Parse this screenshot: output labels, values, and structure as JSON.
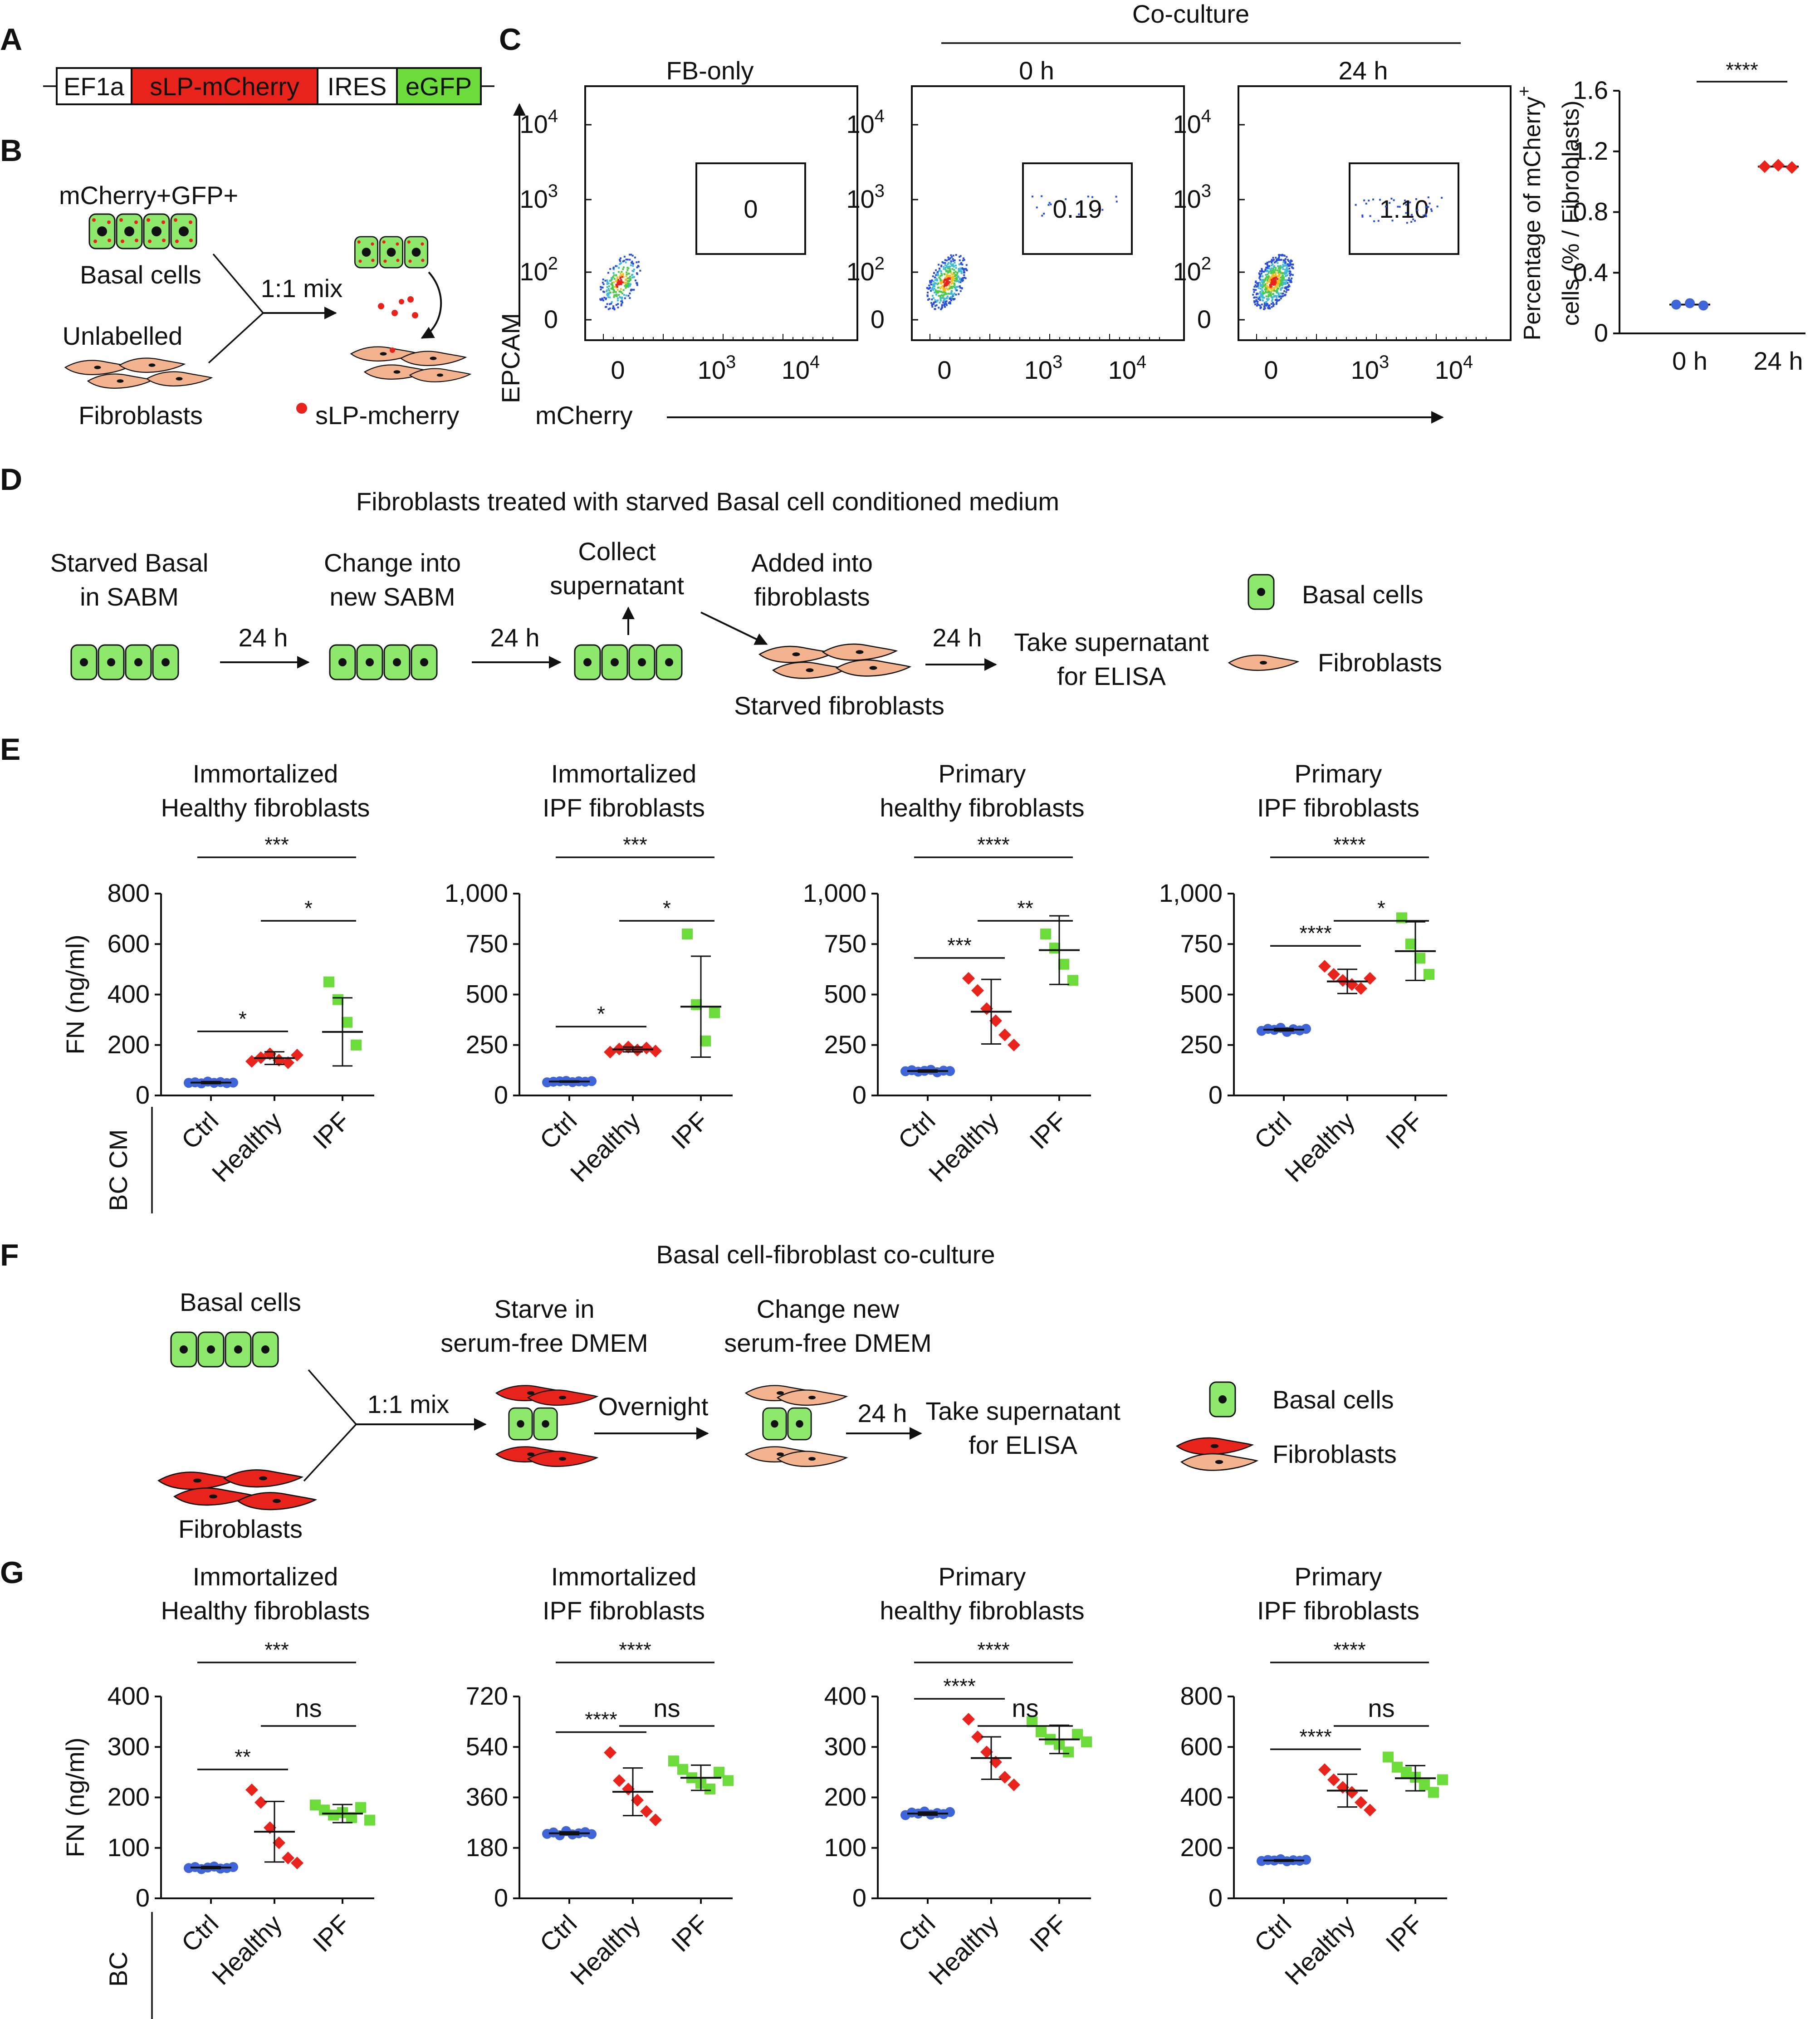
{
  "colors": {
    "red": "#e8231c",
    "green": "#6bdc3a",
    "blue": "#3e64d8",
    "basal": "#8ee86b",
    "fibro": "#f3b38f",
    "fibro_red": "#e8231c"
  },
  "panelA": {
    "label": "A",
    "segments": [
      "EF1a",
      "sLP-mCherry",
      "IRES",
      "eGFP"
    ]
  },
  "panelB": {
    "label": "B",
    "top_label": "mCherry+GFP+",
    "basal_label": "Basal cells",
    "mix_label": "1:1 mix",
    "unlabelled_label": "Unlabelled",
    "fibro_label": "Fibroblasts",
    "legend_label": "sLP-mcherry"
  },
  "panelC": {
    "label": "C",
    "coculture_label": "Co-culture",
    "y_axis_label": "EPCAM",
    "x_axis_label": "mCherry",
    "plots": [
      {
        "title": "FB-only",
        "gate_value": "0"
      },
      {
        "title": "0 h",
        "gate_value": "0.19"
      },
      {
        "title": "24 h",
        "gate_value": "1.10"
      }
    ],
    "y_ticks": [
      "10",
      "10",
      "10",
      "0"
    ],
    "y_exps": [
      "4",
      "3",
      "2",
      ""
    ],
    "x_ticks": [
      "0",
      "10",
      "10"
    ],
    "x_exps": [
      "",
      "3",
      "4"
    ]
  },
  "panelC_chart": {
    "y_label_line1": "Percentage of mCherry",
    "y_label_sup": "+",
    "y_label_line2": "cells (% / Fibroblasts)",
    "sig": "****"
  },
  "chart_data": [
    {
      "type": "scatter",
      "categories": [
        "0 h",
        "24 h"
      ],
      "ylim": [
        0,
        1.6
      ],
      "yticks": [
        "1.6",
        "1.2",
        "0.8",
        "0.4",
        "0"
      ],
      "series": [
        {
          "values": [
            0.19,
            1.1
          ]
        }
      ]
    },
    {
      "type": "scatter",
      "title": "Immortalized Healthy fibroblasts",
      "ylabel": "FN (ng/ml)",
      "categories": [
        "Ctrl",
        "Healthy",
        "IPF"
      ],
      "ylim": [
        0,
        800
      ],
      "yticks": [
        "800",
        "600",
        "400",
        "200",
        "0"
      ],
      "points": [
        [
          50,
          52,
          48,
          55,
          50,
          53,
          49,
          51
        ],
        [
          135,
          150,
          165,
          140,
          130,
          160
        ],
        [
          450,
          380,
          290,
          200
        ]
      ],
      "means": [
        51,
        148,
        252
      ],
      "sds": [
        4,
        25,
        135
      ],
      "comparisons": [
        {
          "pair": [
            0,
            2
          ],
          "label": "***"
        },
        {
          "pair": [
            1,
            2
          ],
          "label": "*"
        },
        {
          "pair": [
            0,
            1
          ],
          "label": "*"
        }
      ]
    },
    {
      "type": "scatter",
      "title": "Immortalized IPF fibroblasts",
      "ylabel": "",
      "categories": [
        "Ctrl",
        "Healthy",
        "IPF"
      ],
      "ylim": [
        0,
        1000
      ],
      "yticks": [
        "1,000",
        "750",
        "500",
        "250",
        "0"
      ],
      "points": [
        [
          65,
          68,
          70,
          72,
          66,
          70,
          68,
          71
        ],
        [
          215,
          230,
          240,
          225,
          235,
          220
        ],
        [
          800,
          450,
          270,
          410
        ]
      ],
      "means": [
        69,
        228,
        440
      ],
      "sds": [
        3,
        12,
        250
      ],
      "comparisons": [
        {
          "pair": [
            0,
            2
          ],
          "label": "***"
        },
        {
          "pair": [
            1,
            2
          ],
          "label": "*"
        },
        {
          "pair": [
            0,
            1
          ],
          "label": "*"
        }
      ]
    },
    {
      "type": "scatter",
      "title": "Primary healthy fibroblasts",
      "ylabel": "",
      "categories": [
        "Ctrl",
        "Healthy",
        "IPF"
      ],
      "ylim": [
        0,
        1000
      ],
      "yticks": [
        "1,000",
        "750",
        "500",
        "250",
        "0"
      ],
      "points": [
        [
          120,
          125,
          118,
          122,
          127,
          115,
          123,
          121
        ],
        [
          580,
          520,
          430,
          370,
          300,
          250
        ],
        [
          800,
          730,
          650,
          570
        ]
      ],
      "means": [
        121,
        415,
        720
      ],
      "sds": [
        5,
        160,
        170
      ],
      "comparisons": [
        {
          "pair": [
            0,
            2
          ],
          "label": "****"
        },
        {
          "pair": [
            1,
            2
          ],
          "label": "**"
        },
        {
          "pair": [
            0,
            1
          ],
          "label": "***"
        }
      ]
    },
    {
      "type": "scatter",
      "title": "Primary IPF fibroblasts",
      "ylabel": "",
      "categories": [
        "Ctrl",
        "Healthy",
        "IPF"
      ],
      "ylim": [
        0,
        1000
      ],
      "yticks": [
        "1,000",
        "750",
        "500",
        "250",
        "0"
      ],
      "points": [
        [
          320,
          330,
          325,
          335,
          315,
          328,
          322,
          330
        ],
        [
          640,
          600,
          570,
          550,
          530,
          580
        ],
        [
          880,
          750,
          680,
          600
        ]
      ],
      "means": [
        326,
        565,
        715
      ],
      "sds": [
        6,
        60,
        145
      ],
      "comparisons": [
        {
          "pair": [
            0,
            2
          ],
          "label": "****"
        },
        {
          "pair": [
            1,
            2
          ],
          "label": "*"
        },
        {
          "pair": [
            0,
            1
          ],
          "label": "****"
        }
      ]
    },
    {
      "type": "scatter",
      "title": "Immortalized Healthy fibroblasts",
      "ylabel": "FN (ng/ml)",
      "categories": [
        "Ctrl",
        "Healthy",
        "IPF"
      ],
      "ylim": [
        0,
        400
      ],
      "yticks": [
        "400",
        "300",
        "200",
        "100",
        "0"
      ],
      "points": [
        [
          60,
          62,
          58,
          61,
          63,
          59,
          60,
          62
        ],
        [
          215,
          190,
          140,
          110,
          80,
          70
        ],
        [
          185,
          175,
          165,
          170,
          160,
          180,
          155
        ]
      ],
      "means": [
        61,
        132,
        168
      ],
      "sds": [
        2,
        60,
        18
      ],
      "comparisons": [
        {
          "pair": [
            0,
            2
          ],
          "label": "***"
        },
        {
          "pair": [
            1,
            2
          ],
          "label": "ns"
        },
        {
          "pair": [
            0,
            1
          ],
          "label": "**"
        }
      ]
    },
    {
      "type": "scatter",
      "title": "Immortalized IPF fibroblasts",
      "ylabel": "",
      "categories": [
        "Ctrl",
        "Healthy",
        "IPF"
      ],
      "ylim": [
        0,
        720
      ],
      "yticks": [
        "720",
        "540",
        "360",
        "180",
        "0"
      ],
      "points": [
        [
          230,
          235,
          225,
          240,
          228,
          232,
          236,
          229
        ],
        [
          520,
          420,
          390,
          350,
          310,
          280
        ],
        [
          490,
          460,
          430,
          410,
          390,
          450,
          420
        ]
      ],
      "means": [
        232,
        380,
        430
      ],
      "sds": [
        5,
        85,
        45
      ],
      "comparisons": [
        {
          "pair": [
            0,
            2
          ],
          "label": "****"
        },
        {
          "pair": [
            1,
            2
          ],
          "label": "ns"
        },
        {
          "pair": [
            0,
            1
          ],
          "label": "****"
        }
      ]
    },
    {
      "type": "scatter",
      "title": "Primary healthy fibroblasts",
      "ylabel": "",
      "categories": [
        "Ctrl",
        "Healthy",
        "IPF"
      ],
      "ylim": [
        0,
        400
      ],
      "yticks": [
        "400",
        "300",
        "200",
        "100",
        "0"
      ],
      "points": [
        [
          165,
          170,
          168,
          172,
          166,
          169,
          167,
          171
        ],
        [
          355,
          320,
          290,
          270,
          240,
          225
        ],
        [
          350,
          330,
          315,
          305,
          290,
          325,
          310
        ]
      ],
      "means": [
        168,
        278,
        315
      ],
      "sds": [
        3,
        42,
        28
      ],
      "comparisons": [
        {
          "pair": [
            0,
            2
          ],
          "label": "****"
        },
        {
          "pair": [
            1,
            2
          ],
          "label": "ns"
        },
        {
          "pair": [
            0,
            1
          ],
          "label": "****"
        }
      ]
    },
    {
      "type": "scatter",
      "title": "Primary IPF fibroblasts",
      "ylabel": "",
      "categories": [
        "Ctrl",
        "Healthy",
        "IPF"
      ],
      "ylim": [
        0,
        800
      ],
      "yticks": [
        "800",
        "600",
        "400",
        "200",
        "0"
      ],
      "points": [
        [
          148,
          152,
          150,
          155,
          147,
          151,
          149,
          153
        ],
        [
          510,
          470,
          440,
          420,
          380,
          350
        ],
        [
          560,
          520,
          500,
          480,
          450,
          420,
          470
        ]
      ],
      "means": [
        150,
        427,
        476
      ],
      "sds": [
        3,
        65,
        50
      ],
      "comparisons": [
        {
          "pair": [
            0,
            2
          ],
          "label": "****"
        },
        {
          "pair": [
            1,
            2
          ],
          "label": "ns"
        },
        {
          "pair": [
            0,
            1
          ],
          "label": "****"
        }
      ]
    }
  ],
  "panelD": {
    "label": "D",
    "title": "Fibroblasts treated with starved Basal cell conditioned medium",
    "step1_l1": "Starved Basal",
    "step1_l2": "in SABM",
    "arrow1": "24 h",
    "step2_l1": "Change into",
    "step2_l2": "new SABM",
    "arrow2": "24 h",
    "step3_l1": "Collect",
    "step3_l2": "supernatant",
    "step4_l1": "Added into",
    "step4_l2": "fibroblasts",
    "step4_below": "Starved fibroblasts",
    "arrow3": "24 h",
    "step5_l1": "Take supernatant",
    "step5_l2": "for ELISA",
    "legend_basal": "Basal cells",
    "legend_fibro": "Fibroblasts"
  },
  "panelE": {
    "label": "E",
    "group_label": "BC CM",
    "titles": [
      [
        "Immortalized",
        "Healthy fibroblasts"
      ],
      [
        "Immortalized",
        "IPF fibroblasts"
      ],
      [
        "Primary",
        "healthy fibroblasts"
      ],
      [
        "Primary",
        "IPF fibroblasts"
      ]
    ]
  },
  "panelF": {
    "label": "F",
    "title": "Basal cell-fibroblast co-culture",
    "basal_label": "Basal cells",
    "fibro_label": "Fibroblasts",
    "mix_label": "1:1 mix",
    "step1_l1": "Starve in",
    "step1_l2": "serum-free DMEM",
    "arrow1": "Overnight",
    "step2_l1": "Change new",
    "step2_l2": "serum-free DMEM",
    "arrow2": "24 h",
    "step3_l1": "Take supernatant",
    "step3_l2": "for ELISA",
    "legend_basal": "Basal cells",
    "legend_fibro": "Fibroblasts"
  },
  "panelG": {
    "label": "G",
    "group_label": "BC",
    "titles": [
      [
        "Immortalized",
        "Healthy fibroblasts"
      ],
      [
        "Immortalized",
        "IPF fibroblasts"
      ],
      [
        "Primary",
        "healthy fibroblasts"
      ],
      [
        "Primary",
        "IPF fibroblasts"
      ]
    ]
  }
}
